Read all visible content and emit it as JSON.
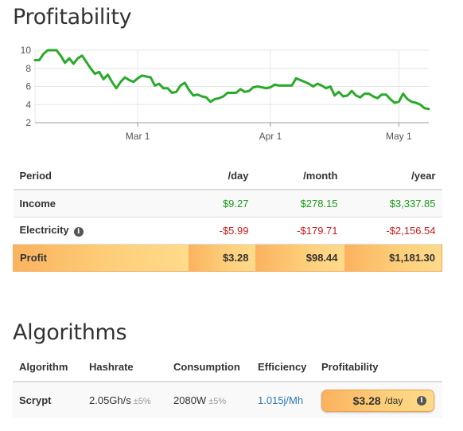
{
  "profitability": {
    "title": "Profitability"
  },
  "chart_data": {
    "type": "line",
    "ylim": [
      2,
      10
    ],
    "yticks": [
      "10",
      "8",
      "6",
      "4",
      "2"
    ],
    "xticks": [
      "Mar 1",
      "Apr 1",
      "May 1"
    ],
    "xtick_dates": [
      "2014-03-01",
      "2014-04-01",
      "2014-05-01"
    ],
    "xlim": [
      "2014-02-05",
      "2014-05-08"
    ],
    "grid": true,
    "line_color": "#2aaa2a",
    "series": [
      {
        "values": [
          [
            "2014-02-05",
            8.9
          ],
          [
            "2014-02-06",
            8.9
          ],
          [
            "2014-02-07",
            9.6
          ],
          [
            "2014-02-08",
            10.0
          ],
          [
            "2014-02-09",
            10.0
          ],
          [
            "2014-02-10",
            10.0
          ],
          [
            "2014-02-11",
            9.4
          ],
          [
            "2014-02-12",
            8.6
          ],
          [
            "2014-02-13",
            9.1
          ],
          [
            "2014-02-14",
            8.5
          ],
          [
            "2014-02-15",
            9.1
          ],
          [
            "2014-02-16",
            9.4
          ],
          [
            "2014-02-17",
            8.7
          ],
          [
            "2014-02-18",
            8.0
          ],
          [
            "2014-02-19",
            7.4
          ],
          [
            "2014-02-20",
            7.6
          ],
          [
            "2014-02-21",
            6.8
          ],
          [
            "2014-02-22",
            7.3
          ],
          [
            "2014-02-23",
            6.5
          ],
          [
            "2014-02-24",
            5.8
          ],
          [
            "2014-02-25",
            6.5
          ],
          [
            "2014-02-26",
            7.0
          ],
          [
            "2014-02-27",
            6.7
          ],
          [
            "2014-02-28",
            6.5
          ],
          [
            "2014-03-01",
            6.9
          ],
          [
            "2014-03-02",
            7.2
          ],
          [
            "2014-03-03",
            7.1
          ],
          [
            "2014-03-04",
            7.0
          ],
          [
            "2014-03-05",
            6.1
          ],
          [
            "2014-03-06",
            6.3
          ],
          [
            "2014-03-07",
            5.8
          ],
          [
            "2014-03-08",
            5.8
          ],
          [
            "2014-03-09",
            5.3
          ],
          [
            "2014-03-10",
            5.4
          ],
          [
            "2014-03-11",
            6.1
          ],
          [
            "2014-03-12",
            6.4
          ],
          [
            "2014-03-13",
            5.6
          ],
          [
            "2014-03-14",
            5.0
          ],
          [
            "2014-03-15",
            5.1
          ],
          [
            "2014-03-16",
            4.9
          ],
          [
            "2014-03-17",
            4.8
          ],
          [
            "2014-03-18",
            4.3
          ],
          [
            "2014-03-19",
            4.6
          ],
          [
            "2014-03-20",
            4.7
          ],
          [
            "2014-03-21",
            4.9
          ],
          [
            "2014-03-22",
            5.3
          ],
          [
            "2014-03-23",
            5.3
          ],
          [
            "2014-03-24",
            5.3
          ],
          [
            "2014-03-25",
            5.7
          ],
          [
            "2014-03-26",
            5.4
          ],
          [
            "2014-03-27",
            5.5
          ],
          [
            "2014-03-28",
            5.9
          ],
          [
            "2014-03-29",
            6.0
          ],
          [
            "2014-03-30",
            5.9
          ],
          [
            "2014-03-31",
            5.8
          ],
          [
            "2014-04-01",
            5.9
          ],
          [
            "2014-04-02",
            6.2
          ],
          [
            "2014-04-03",
            6.1
          ],
          [
            "2014-04-04",
            6.1
          ],
          [
            "2014-04-05",
            6.1
          ],
          [
            "2014-04-06",
            6.1
          ],
          [
            "2014-04-07",
            6.9
          ],
          [
            "2014-04-08",
            6.7
          ],
          [
            "2014-04-09",
            6.5
          ],
          [
            "2014-04-10",
            6.3
          ],
          [
            "2014-04-11",
            6.0
          ],
          [
            "2014-04-12",
            6.3
          ],
          [
            "2014-04-13",
            6.1
          ],
          [
            "2014-04-14",
            5.8
          ],
          [
            "2014-04-15",
            6.0
          ],
          [
            "2014-04-16",
            5.0
          ],
          [
            "2014-04-17",
            5.4
          ],
          [
            "2014-04-18",
            4.9
          ],
          [
            "2014-04-19",
            5.0
          ],
          [
            "2014-04-20",
            5.5
          ],
          [
            "2014-04-21",
            5.0
          ],
          [
            "2014-04-22",
            4.8
          ],
          [
            "2014-04-23",
            5.2
          ],
          [
            "2014-04-24",
            5.2
          ],
          [
            "2014-04-25",
            4.9
          ],
          [
            "2014-04-26",
            4.7
          ],
          [
            "2014-04-27",
            5.1
          ],
          [
            "2014-04-28",
            5.1
          ],
          [
            "2014-04-29",
            4.6
          ],
          [
            "2014-04-30",
            4.2
          ],
          [
            "2014-05-01",
            4.3
          ],
          [
            "2014-05-02",
            5.2
          ],
          [
            "2014-05-03",
            4.6
          ],
          [
            "2014-05-04",
            4.3
          ],
          [
            "2014-05-05",
            4.2
          ],
          [
            "2014-05-06",
            4.0
          ],
          [
            "2014-05-07",
            3.6
          ],
          [
            "2014-05-08",
            3.5
          ]
        ]
      }
    ]
  },
  "period_table": {
    "headers": {
      "period": "Period",
      "day": "/day",
      "month": "/month",
      "year": "/year"
    },
    "rows": [
      {
        "label": "Income",
        "day": "$9.27",
        "month": "$278.15",
        "year": "$3,337.85"
      },
      {
        "label": "Electricity",
        "day": "-$5.99",
        "month": "-$179.71",
        "year": "-$2,156.54"
      },
      {
        "label": "Profit",
        "day": "$3.28",
        "month": "$98.44",
        "year": "$1,181.30"
      }
    ]
  },
  "algorithms": {
    "title": "Algorithms",
    "headers": {
      "algorithm": "Algorithm",
      "hashrate": "Hashrate",
      "consumption": "Consumption",
      "efficiency": "Efficiency",
      "profitability": "Profitability"
    },
    "rows": [
      {
        "algorithm": "Scrypt",
        "hashrate": "2.05Gh/s",
        "hashrate_tolerance": "±5%",
        "consumption": "2080W",
        "consumption_tolerance": "±5%",
        "efficiency": "1.015j/Mh",
        "profit_value": "$3.28",
        "profit_unit": "/day"
      }
    ]
  },
  "icons": {
    "info": "info-icon"
  },
  "colors": {
    "positive": "#1a9a1a",
    "negative": "#c91b1b",
    "profit_gradient_start": "#fbb25f",
    "profit_gradient_end": "#ffdb8c",
    "link": "#2a7ab8"
  }
}
